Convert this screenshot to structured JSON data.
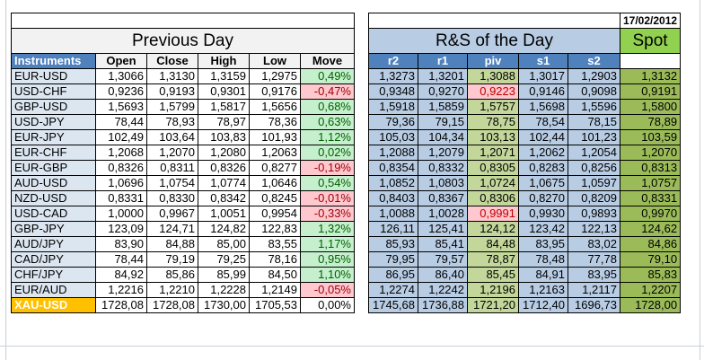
{
  "date": "17/02/2012",
  "sections": {
    "previous_day": "Previous Day",
    "rs": "R&S of the Day",
    "spot": "Spot"
  },
  "columns": {
    "instruments": "Instruments",
    "open": "Open",
    "close": "Close",
    "high": "High",
    "low": "Low",
    "move": "Move",
    "r2": "r2",
    "r1": "r1",
    "piv": "piv",
    "s1": "s1",
    "s2": "s2"
  },
  "rows": [
    {
      "name": "EUR-USD",
      "open": "1,3066",
      "close": "1,3130",
      "high": "1,3159",
      "low": "1,2975",
      "move": "0,49%",
      "r2": "1,3273",
      "r1": "1,3201",
      "piv": "1,3088",
      "s1": "1,3017",
      "s2": "1,2903",
      "spot": "1,3132",
      "move_sign": "pos",
      "piv_sign": "pos"
    },
    {
      "name": "USD-CHF",
      "open": "0,9236",
      "close": "0,9193",
      "high": "0,9301",
      "low": "0,9176",
      "move": "-0,47%",
      "r2": "0,9348",
      "r1": "0,9270",
      "piv": "0,9223",
      "s1": "0,9146",
      "s2": "0,9098",
      "spot": "0,9191",
      "move_sign": "neg",
      "piv_sign": "neg"
    },
    {
      "name": "GBP-USD",
      "open": "1,5693",
      "close": "1,5799",
      "high": "1,5817",
      "low": "1,5656",
      "move": "0,68%",
      "r2": "1,5918",
      "r1": "1,5859",
      "piv": "1,5757",
      "s1": "1,5698",
      "s2": "1,5596",
      "spot": "1,5800",
      "move_sign": "pos",
      "piv_sign": "pos"
    },
    {
      "name": "USD-JPY",
      "open": "78,44",
      "close": "78,93",
      "high": "78,97",
      "low": "78,36",
      "move": "0,63%",
      "r2": "79,36",
      "r1": "79,15",
      "piv": "78,75",
      "s1": "78,54",
      "s2": "78,15",
      "spot": "78,89",
      "move_sign": "pos",
      "piv_sign": "pos"
    },
    {
      "name": "EUR-JPY",
      "open": "102,49",
      "close": "103,64",
      "high": "103,83",
      "low": "101,93",
      "move": "1,12%",
      "r2": "105,03",
      "r1": "104,34",
      "piv": "103,13",
      "s1": "102,44",
      "s2": "101,23",
      "spot": "103,59",
      "move_sign": "pos",
      "piv_sign": "pos"
    },
    {
      "name": "EUR-CHF",
      "open": "1,2068",
      "close": "1,2070",
      "high": "1,2080",
      "low": "1,2063",
      "move": "0,02%",
      "r2": "1,2088",
      "r1": "1,2079",
      "piv": "1,2071",
      "s1": "1,2062",
      "s2": "1,2054",
      "spot": "1,2070",
      "move_sign": "pos",
      "piv_sign": "pos"
    },
    {
      "name": "EUR-GBP",
      "open": "0,8326",
      "close": "0,8311",
      "high": "0,8326",
      "low": "0,8277",
      "move": "-0,19%",
      "r2": "0,8354",
      "r1": "0,8332",
      "piv": "0,8305",
      "s1": "0,8283",
      "s2": "0,8256",
      "spot": "0,8313",
      "move_sign": "neg",
      "piv_sign": "pos"
    },
    {
      "name": "AUD-USD",
      "open": "1,0696",
      "close": "1,0754",
      "high": "1,0774",
      "low": "1,0646",
      "move": "0,54%",
      "r2": "1,0852",
      "r1": "1,0803",
      "piv": "1,0724",
      "s1": "1,0675",
      "s2": "1,0597",
      "spot": "1,0757",
      "move_sign": "pos",
      "piv_sign": "pos"
    },
    {
      "name": "NZD-USD",
      "open": "0,8331",
      "close": "0,8330",
      "high": "0,8342",
      "low": "0,8245",
      "move": "-0,01%",
      "r2": "0,8403",
      "r1": "0,8367",
      "piv": "0,8306",
      "s1": "0,8270",
      "s2": "0,8209",
      "spot": "0,8331",
      "move_sign": "neg",
      "piv_sign": "pos"
    },
    {
      "name": "USD-CAD",
      "open": "1,0000",
      "close": "0,9967",
      "high": "1,0051",
      "low": "0,9954",
      "move": "-0,33%",
      "r2": "1,0088",
      "r1": "1,0028",
      "piv": "0,9991",
      "s1": "0,9930",
      "s2": "0,9893",
      "spot": "0,9970",
      "move_sign": "neg",
      "piv_sign": "neg"
    },
    {
      "name": "GBP-JPY",
      "open": "123,09",
      "close": "124,71",
      "high": "124,82",
      "low": "122,83",
      "move": "1,32%",
      "r2": "126,11",
      "r1": "125,41",
      "piv": "124,12",
      "s1": "123,42",
      "s2": "122,13",
      "spot": "124,62",
      "move_sign": "pos",
      "piv_sign": "pos"
    },
    {
      "name": "AUD/JPY",
      "open": "83,90",
      "close": "84,88",
      "high": "85,00",
      "low": "83,55",
      "move": "1,17%",
      "r2": "85,93",
      "r1": "85,41",
      "piv": "84,48",
      "s1": "83,95",
      "s2": "83,02",
      "spot": "84,86",
      "move_sign": "pos",
      "piv_sign": "pos"
    },
    {
      "name": "CAD/JPY",
      "open": "78,44",
      "close": "79,19",
      "high": "79,25",
      "low": "78,16",
      "move": "0,95%",
      "r2": "79,95",
      "r1": "79,57",
      "piv": "78,87",
      "s1": "78,48",
      "s2": "77,78",
      "spot": "79,10",
      "move_sign": "pos",
      "piv_sign": "pos"
    },
    {
      "name": "CHF/JPY",
      "open": "84,92",
      "close": "85,86",
      "high": "85,99",
      "low": "84,50",
      "move": "1,10%",
      "r2": "86,95",
      "r1": "86,40",
      "piv": "85,45",
      "s1": "84,91",
      "s2": "83,95",
      "spot": "85,83",
      "move_sign": "pos",
      "piv_sign": "pos"
    },
    {
      "name": "EUR/AUD",
      "open": "1,2216",
      "close": "1,2210",
      "high": "1,2228",
      "low": "1,2149",
      "move": "-0,05%",
      "r2": "1,2274",
      "r1": "1,2242",
      "piv": "1,2196",
      "s1": "1,2163",
      "s2": "1,2117",
      "spot": "1,2207",
      "move_sign": "neg",
      "piv_sign": "pos"
    },
    {
      "name": "XAU-USD",
      "open": "1728,08",
      "close": "1728,08",
      "high": "1730,00",
      "low": "1705,53",
      "move": "0,00%",
      "r2": "1745,68",
      "r1": "1736,88",
      "piv": "1721,20",
      "s1": "1712,40",
      "s2": "1696,73",
      "spot": "1728,00",
      "move_sign": "zero",
      "piv_sign": "pos",
      "highlight": "gold"
    }
  ],
  "colors": {
    "header_blue": "#4f81bd",
    "rs_blue": "#b8cce4",
    "spot_green": "#9bbb59",
    "spot_header_green": "#92d050",
    "positive_bg": "#c6efce",
    "negative_bg": "#ffc7ce",
    "gold": "#ffc000"
  }
}
